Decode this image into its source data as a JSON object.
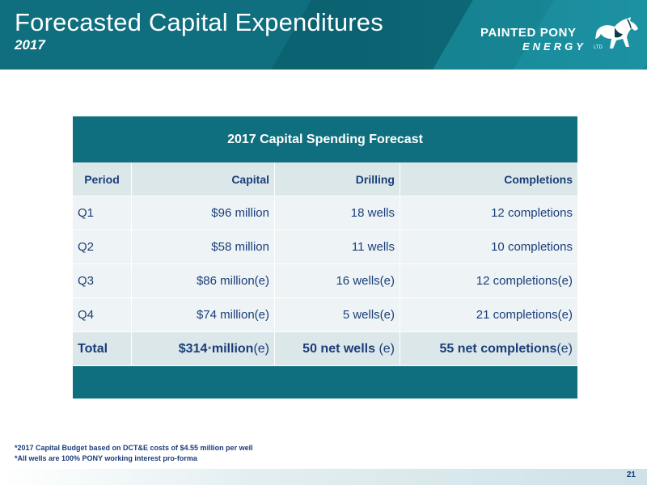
{
  "header": {
    "title": "Forecasted Capital Expenditures",
    "subtitle": "2017",
    "logo": {
      "line1": "PAINTED PONY",
      "line2": "ENERGY",
      "tm": "LTD",
      "icon": "horse-icon"
    }
  },
  "table": {
    "title": "2017 Capital Spending Forecast",
    "columns": [
      "Period",
      "Capital",
      "Drilling",
      "Completions"
    ],
    "rows": [
      [
        "Q1",
        "$96 million",
        "18 wells",
        "12 completions"
      ],
      [
        "Q2",
        "$58 million",
        "11 wells",
        "10 completions"
      ],
      [
        "Q3",
        "$86 million(e)",
        "16 wells(e)",
        "12 completions(e)"
      ],
      [
        "Q4",
        "$74 million(e)",
        "5 wells(e)",
        "21 completions(e)"
      ]
    ],
    "total": {
      "period": "Total",
      "capital_value": "$314",
      "capital_star": "*",
      "capital_unit": " million",
      "capital_suffix": "(e)",
      "drilling_bold": "50 net wells",
      "drilling_suffix": " (e)",
      "completions_bold": "55 net completions",
      "completions_suffix": "(e)"
    }
  },
  "footnotes": [
    "*2017 Capital Budget based on DCT&E costs of $4.55 million per well",
    "*All wells are 100% PONY working interest pro-forma"
  ],
  "page_number": "21",
  "colors": {
    "teal": "#0f6f7e",
    "navy": "#1a3e7a",
    "row_light": "#eef3f5",
    "row_header": "#dce7ea"
  }
}
